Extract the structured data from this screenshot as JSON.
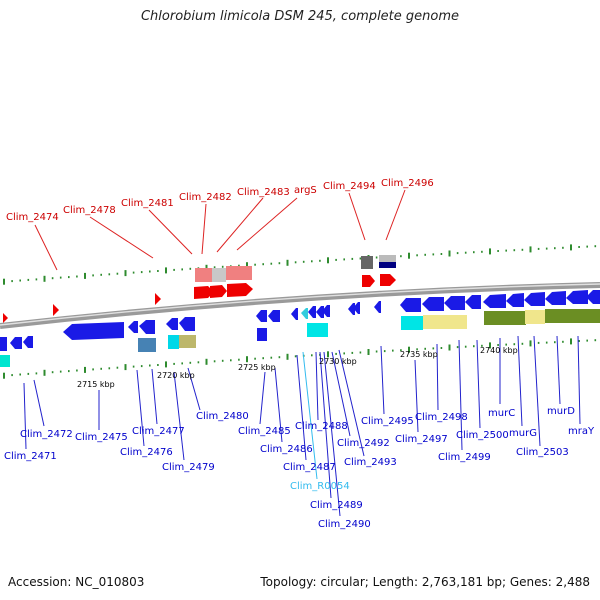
{
  "title": "Chlorobium limicola DSM 245, complete genome",
  "footer": {
    "accession": "Accession: NC_010803",
    "info": "Topology: circular; Length: 2,763,181 bp; Genes: 2,488"
  },
  "colors": {
    "top_label": "#cc0000",
    "bottom_label": "#0000cc",
    "rna_label": "#33bbee",
    "backbone": "#8a8a8a"
  },
  "kbp_labels": [
    "2715 kbp",
    "2720 kbp",
    "2725 kbp",
    "2730 kbp",
    "2735 kbp",
    "2740 kbp"
  ],
  "top_labels": [
    "Clim_2474",
    "Clim_2478",
    "Clim_2481",
    "Clim_2482",
    "Clim_2483",
    "argS",
    "Clim_2494",
    "Clim_2496"
  ],
  "bottom_labels": [
    "Clim_2471",
    "Clim_2472",
    "Clim_2475",
    "Clim_2476",
    "Clim_2477",
    "Clim_2479",
    "Clim_2480",
    "Clim_2485",
    "Clim_2486",
    "Clim_2487",
    "Clim_2488",
    "Clim_R0054",
    "Clim_2489",
    "Clim_2490",
    "Clim_2492",
    "Clim_2493",
    "Clim_2495",
    "Clim_2497",
    "Clim_2498",
    "Clim_2499",
    "Clim_2500",
    "murC",
    "murG",
    "Clim_2503",
    "murD",
    "mraY"
  ]
}
